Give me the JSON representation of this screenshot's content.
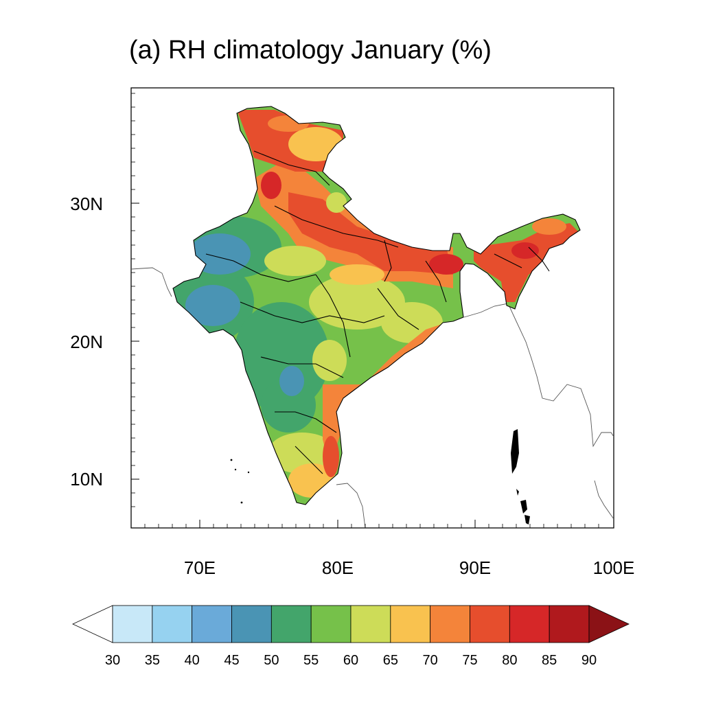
{
  "title": "(a) RH climatology January (%)",
  "map": {
    "lon_range": [
      65,
      100
    ],
    "lat_range": [
      6.5,
      38.3
    ],
    "x_ticks": [
      "70E",
      "80E",
      "90E",
      "100E"
    ],
    "y_ticks": [
      "10N",
      "20N",
      "30N"
    ]
  },
  "colorbar": {
    "levels": [
      "30",
      "35",
      "40",
      "45",
      "50",
      "55",
      "60",
      "65",
      "70",
      "75",
      "80",
      "85",
      "90"
    ],
    "colors": [
      "#ffffff",
      "#c8e8f8",
      "#96d2f0",
      "#6aaad9",
      "#4a94b4",
      "#43a56b",
      "#76c14a",
      "#cddc58",
      "#f9c24f",
      "#f4843a",
      "#e64e2d",
      "#d62728",
      "#b0191d",
      "#8b1216"
    ]
  }
}
